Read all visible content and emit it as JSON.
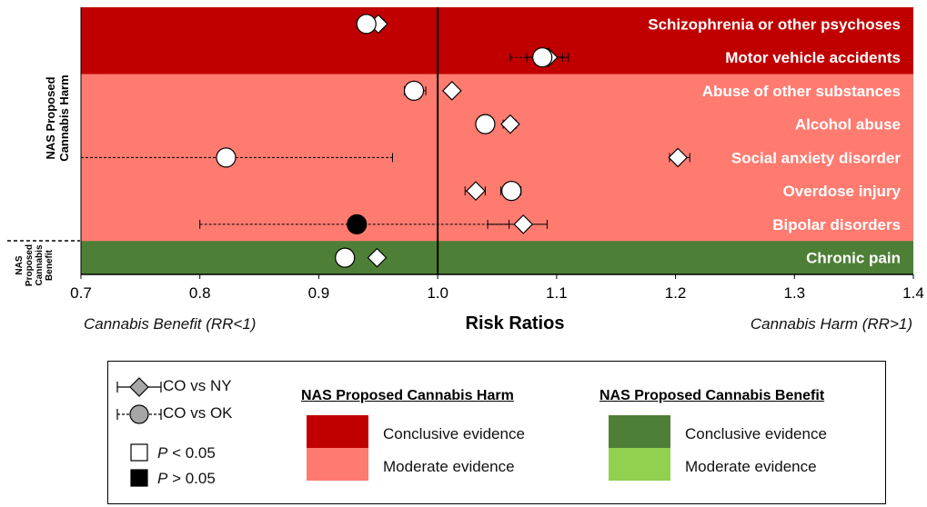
{
  "chart_data": {
    "type": "scatter",
    "xlabel": "Risk Ratios",
    "xlim": [
      0.7,
      1.4
    ],
    "xticks": [
      0.7,
      0.8,
      0.9,
      1.0,
      1.1,
      1.2,
      1.3,
      1.4
    ],
    "tick_labels": [
      "0.7",
      "0.8",
      "0.9",
      "1.0",
      "1.1",
      "1.2",
      "1.3",
      "1.4"
    ],
    "reference_line": 1.0,
    "benefit_label": "Cannabis Benefit (RR<1)",
    "harm_label": "Cannabis Harm (RR>1)",
    "group_labels": {
      "harm": "NAS Proposed Cannabis Harm",
      "benefit": "NAS Proposed Cannabis Benefit"
    },
    "colors": {
      "harm_conclusive": "#c00000",
      "harm_moderate": "#ff7b70",
      "benefit_conclusive": "#4e7f36",
      "benefit_moderate": "#92d050"
    },
    "outcomes": [
      {
        "name": "Schizophrenia or other psychoses",
        "evidence": "harm_conclusive",
        "co_vs_ny": {
          "rr": 0.95,
          "ci": [
            0.945,
            0.955
          ],
          "p_lt_05": true
        },
        "co_vs_ok": {
          "rr": 0.94,
          "ci": [
            0.932,
            0.946
          ],
          "p_lt_05": true
        }
      },
      {
        "name": "Motor vehicle accidents",
        "evidence": "harm_conclusive",
        "co_vs_ny": {
          "rr": 1.093,
          "ci": [
            1.075,
            1.11
          ],
          "p_lt_05": true
        },
        "co_vs_ok": {
          "rr": 1.088,
          "ci": [
            1.061,
            1.105
          ],
          "p_lt_05": true
        }
      },
      {
        "name": "Abuse of other substances",
        "evidence": "harm_moderate",
        "co_vs_ny": {
          "rr": 1.012,
          "ci": [
            1.01,
            1.015
          ],
          "p_lt_05": true
        },
        "co_vs_ok": {
          "rr": 0.98,
          "ci": [
            0.972,
            0.99
          ],
          "p_lt_05": true
        }
      },
      {
        "name": "Alcohol abuse",
        "evidence": "harm_moderate",
        "co_vs_ny": {
          "rr": 1.061,
          "ci": [
            1.055,
            1.066
          ],
          "p_lt_05": true
        },
        "co_vs_ok": {
          "rr": 1.04,
          "ci": [
            1.036,
            1.045
          ],
          "p_lt_05": true
        }
      },
      {
        "name": "Social anxiety disorder",
        "evidence": "harm_moderate",
        "co_vs_ny": {
          "rr": 1.202,
          "ci": [
            1.195,
            1.212
          ],
          "p_lt_05": true
        },
        "co_vs_ok": {
          "rr": 0.822,
          "ci": [
            0.7,
            0.962
          ],
          "p_lt_05": true
        }
      },
      {
        "name": "Overdose injury",
        "evidence": "harm_moderate",
        "co_vs_ny": {
          "rr": 1.032,
          "ci": [
            1.023,
            1.04
          ],
          "p_lt_05": true
        },
        "co_vs_ok": {
          "rr": 1.062,
          "ci": [
            1.053,
            1.07
          ],
          "p_lt_05": true
        }
      },
      {
        "name": "Bipolar disorders",
        "evidence": "harm_moderate",
        "co_vs_ny": {
          "rr": 1.072,
          "ci": [
            1.042,
            1.092
          ],
          "p_lt_05": true
        },
        "co_vs_ok": {
          "rr": 0.932,
          "ci": [
            0.8,
            1.06
          ],
          "p_lt_05": false
        }
      },
      {
        "name": "Chronic pain",
        "evidence": "benefit_conclusive",
        "co_vs_ny": {
          "rr": 0.949,
          "ci": [
            0.945,
            0.953
          ],
          "p_lt_05": true
        },
        "co_vs_ok": {
          "rr": 0.922,
          "ci": [
            0.918,
            0.927
          ],
          "p_lt_05": true
        }
      }
    ]
  },
  "legend": {
    "co_vs_ny": "CO vs NY",
    "co_vs_ok": "CO vs OK",
    "p_sig_label": "< 0.05",
    "p_nonsig_label": "> 0.05",
    "p_letter": "P",
    "harm_heading": "NAS Proposed Cannabis Harm",
    "benefit_heading": "NAS Proposed Cannabis Benefit",
    "conclusive": "Conclusive evidence",
    "moderate": "Moderate evidence"
  }
}
